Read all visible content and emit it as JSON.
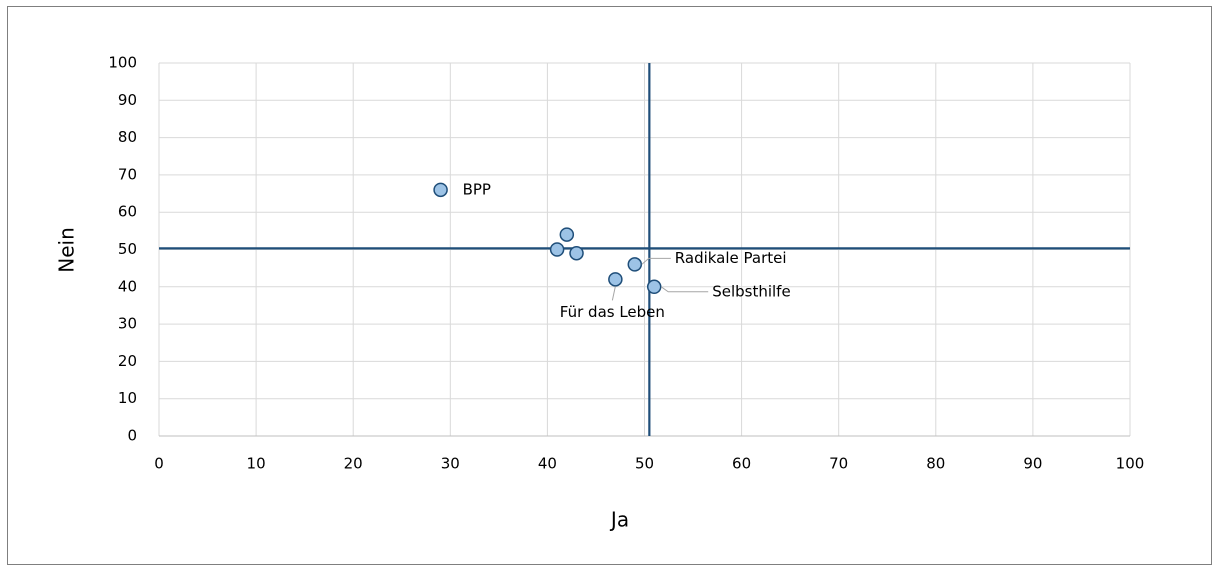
{
  "chart_data": {
    "type": "scatter",
    "x_label": "Ja",
    "y_label": "Nein",
    "series": [
      {
        "color": "#9dc3e6",
        "edge_color": "#1f4e79",
        "x": [
          29,
          41,
          42,
          43,
          47,
          49,
          51
        ],
        "values": [
          66,
          50,
          54,
          49,
          42,
          46,
          40
        ],
        "labels": [
          "BPP",
          null,
          null,
          null,
          "Für das Leben",
          "Radikale Partei",
          "Selbsthilfe"
        ]
      }
    ],
    "reference_lines": {
      "x": 50.5,
      "y": 50.3,
      "color": "#1f4e79"
    },
    "xlim": [
      0,
      100
    ],
    "xticks": [
      0,
      10,
      20,
      30,
      40,
      50,
      60,
      70,
      80,
      90,
      100
    ],
    "ylim": [
      0,
      100
    ],
    "yticks": [
      0,
      10,
      20,
      30,
      40,
      50,
      60,
      70,
      80,
      90,
      100
    ],
    "grid": true
  }
}
